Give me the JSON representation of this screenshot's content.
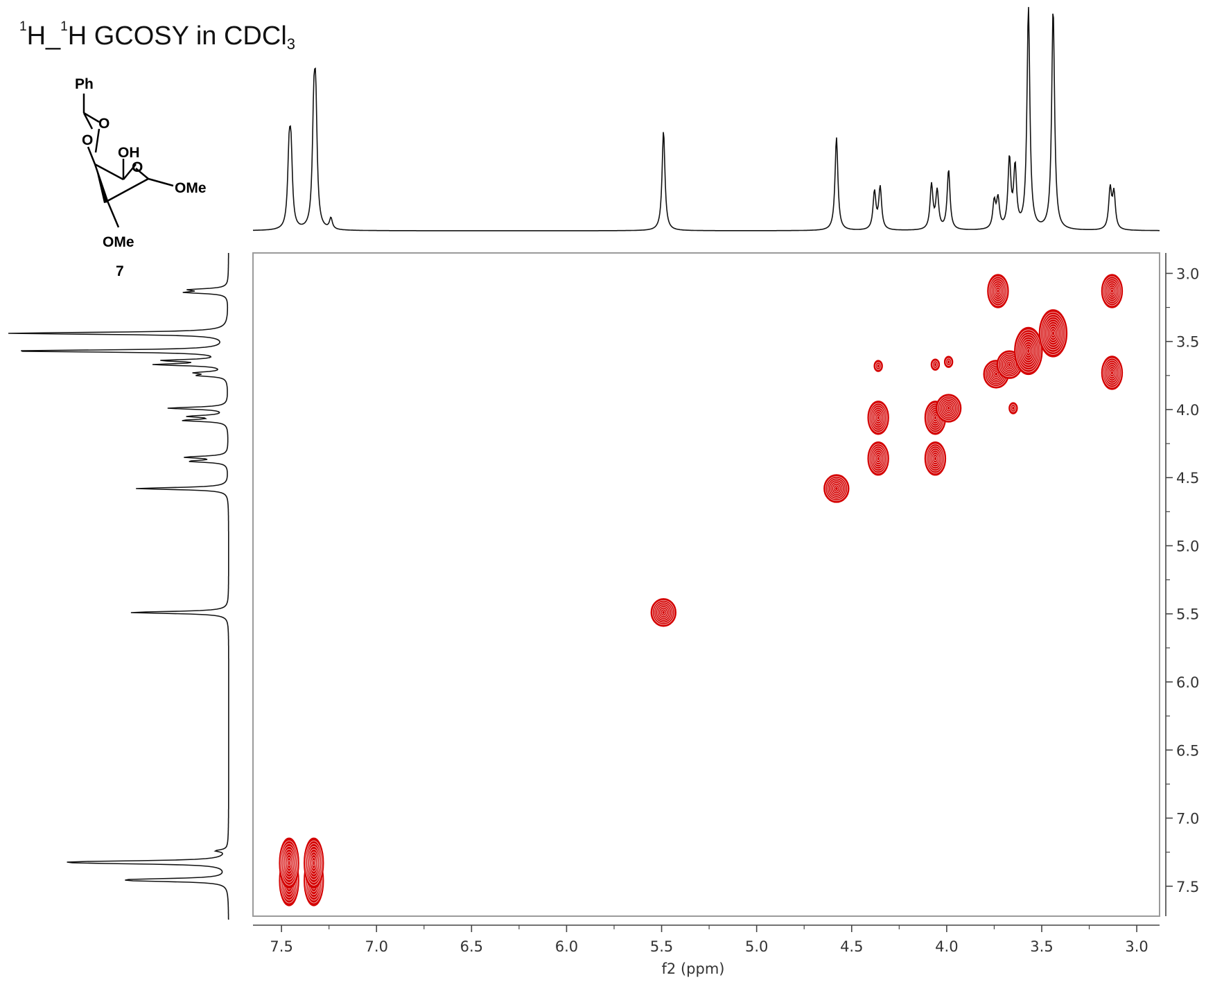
{
  "title": {
    "sup1": "1",
    "h1": "H_",
    "sup2": "1",
    "rest": "H GCOSY in CDCl",
    "sub": "3"
  },
  "molecule": {
    "compound_number": "7",
    "labels": {
      "ph": "Ph",
      "o_top": "O",
      "o_left": "O",
      "oh": "OH",
      "o_ring": "O",
      "ome_right": "OMe",
      "ome_bottom": "OMe"
    }
  },
  "colors": {
    "contour": "#d40000",
    "spectrum": "#111111",
    "frame": "#9a9a9a",
    "axis": "#444444"
  },
  "chart_data": {
    "type": "heatmap",
    "subtype": "2D NMR COSY contour plot with 1D projections",
    "xlabel": "f2 (ppm)",
    "ylabel": "",
    "xlim": [
      7.65,
      2.88
    ],
    "ylim": [
      2.85,
      7.72
    ],
    "x_reversed": true,
    "x_ticks": [
      7.5,
      7.0,
      6.5,
      6.0,
      5.5,
      5.0,
      4.5,
      4.0,
      3.5,
      3.0
    ],
    "x_tick_labels": [
      "7.5",
      "7.0",
      "6.5",
      "6.0",
      "5.5",
      "5.0",
      "4.5",
      "4.0",
      "3.5",
      "3.0"
    ],
    "y_ticks": [
      3.0,
      3.5,
      4.0,
      4.5,
      5.0,
      5.5,
      6.0,
      6.5,
      7.0,
      7.5
    ],
    "y_tick_labels": [
      "3.0",
      "3.5",
      "4.0",
      "4.5",
      "5.0",
      "5.5",
      "6.0",
      "6.5",
      "7.0",
      "7.5"
    ],
    "projection_peaks": [
      {
        "ppm": 7.46,
        "height": 0.3
      },
      {
        "ppm": 7.45,
        "height": 0.31
      },
      {
        "ppm": 7.33,
        "height": 0.45
      },
      {
        "ppm": 7.32,
        "height": 0.5
      },
      {
        "ppm": 7.24,
        "height": 0.05
      },
      {
        "ppm": 5.49,
        "height": 0.45
      },
      {
        "ppm": 4.58,
        "height": 0.42
      },
      {
        "ppm": 4.38,
        "height": 0.17
      },
      {
        "ppm": 4.35,
        "height": 0.19
      },
      {
        "ppm": 4.08,
        "height": 0.2
      },
      {
        "ppm": 4.05,
        "height": 0.17
      },
      {
        "ppm": 3.99,
        "height": 0.27
      },
      {
        "ppm": 3.75,
        "height": 0.12
      },
      {
        "ppm": 3.73,
        "height": 0.13
      },
      {
        "ppm": 3.67,
        "height": 0.31
      },
      {
        "ppm": 3.64,
        "height": 0.27
      },
      {
        "ppm": 3.57,
        "height": 1.0
      },
      {
        "ppm": 3.44,
        "height": 1.0
      },
      {
        "ppm": 3.14,
        "height": 0.18
      },
      {
        "ppm": 3.12,
        "height": 0.16
      }
    ],
    "cross_peaks": [
      {
        "f2": 7.46,
        "f1": 7.46,
        "shape": "aromatic"
      },
      {
        "f2": 7.46,
        "f1": 7.33,
        "shape": "aromatic"
      },
      {
        "f2": 7.33,
        "f1": 7.46,
        "shape": "aromatic"
      },
      {
        "f2": 7.33,
        "f1": 7.33,
        "shape": "aromatic"
      },
      {
        "f2": 5.49,
        "f1": 5.49,
        "shape": "diamond"
      },
      {
        "f2": 4.58,
        "f1": 4.58,
        "shape": "diamond"
      },
      {
        "f2": 4.36,
        "f1": 4.06,
        "shape": "doublet"
      },
      {
        "f2": 4.36,
        "f1": 4.36,
        "shape": "doublet"
      },
      {
        "f2": 4.06,
        "f1": 4.06,
        "shape": "doublet"
      },
      {
        "f2": 4.06,
        "f1": 4.36,
        "shape": "doublet"
      },
      {
        "f2": 3.99,
        "f1": 3.99,
        "shape": "diamond"
      },
      {
        "f2": 4.06,
        "f1": 3.67,
        "shape": "small"
      },
      {
        "f2": 3.99,
        "f1": 3.65,
        "shape": "small"
      },
      {
        "f2": 4.36,
        "f1": 3.68,
        "shape": "small"
      },
      {
        "f2": 3.73,
        "f1": 3.13,
        "shape": "doublet"
      },
      {
        "f2": 3.13,
        "f1": 3.13,
        "shape": "doublet"
      },
      {
        "f2": 3.13,
        "f1": 3.73,
        "shape": "doublet"
      },
      {
        "f2": 3.74,
        "f1": 3.74,
        "shape": "diamond"
      },
      {
        "f2": 3.67,
        "f1": 3.67,
        "shape": "diamond"
      },
      {
        "f2": 3.57,
        "f1": 3.57,
        "shape": "strong"
      },
      {
        "f2": 3.44,
        "f1": 3.44,
        "shape": "strong"
      },
      {
        "f2": 3.65,
        "f1": 3.99,
        "shape": "small"
      }
    ]
  }
}
